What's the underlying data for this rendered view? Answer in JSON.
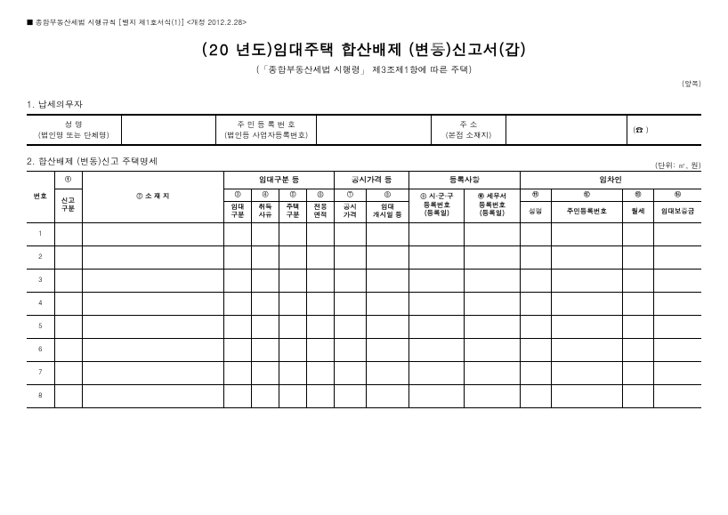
{
  "topNote": "■ 종합부동산세법 시행규칙 [별지 제1호서식(1)] <개정 2012.2.28>",
  "title": {
    "prefix": "(20",
    "main": "년도)임대주택 합산배제 (변동)신고서(갑)",
    "sub": "(「종합부동산세법 시행령」 제3조제1항에 따른 주택)"
  },
  "topRight": "(앞쪽)",
  "section1": {
    "label": "1. 납세의무자",
    "nameLabel": "성        명",
    "nameSub": "(법인명 또는 단체명)",
    "rrnLabel": "주 민 등 록 번 호",
    "rrnSub": "(법인등 사업자등록번호)",
    "addrLabel": "주        소",
    "addrSub": "(본점 소재지)",
    "phoneIcon": "(☎            )"
  },
  "section2": {
    "label": "2. 합산배제 (변동)신고 주택명세",
    "unit": "(단위: ㎡, 원)",
    "headers": {
      "no": "번호",
      "col1a": "①",
      "col1b": "신고\n구분",
      "col2": "② 소 재 지",
      "grpA": "임대구분 등",
      "grpB": "공시가격 등",
      "grpC": "등록사항",
      "grpD": "임차인",
      "c3a": "③",
      "c3b": "임대\n구분",
      "c4a": "④",
      "c4b": "취득\n사유",
      "c5a": "⑤",
      "c5b": "주택\n구분",
      "c6a": "⑥",
      "c6b": "전용\n면적",
      "c7a": "⑦",
      "c7b": "공시\n가격",
      "c8a": "⑧",
      "c8b": "임대\n개시일 등",
      "c9": "⑨ 시·군·구\n등록번호\n(등록일)",
      "c10": "⑩ 세무서\n등록번호\n(등록일)",
      "c11a": "⑪",
      "c11b": "성명",
      "c12a": "⑫",
      "c12b": "주민등록번호",
      "c13a": "⑬",
      "c13b": "월세",
      "c14a": "⑭",
      "c14b": "임대보증금"
    },
    "rows": [
      "1",
      "2",
      "3",
      "4",
      "5",
      "6",
      "7",
      "8"
    ]
  }
}
